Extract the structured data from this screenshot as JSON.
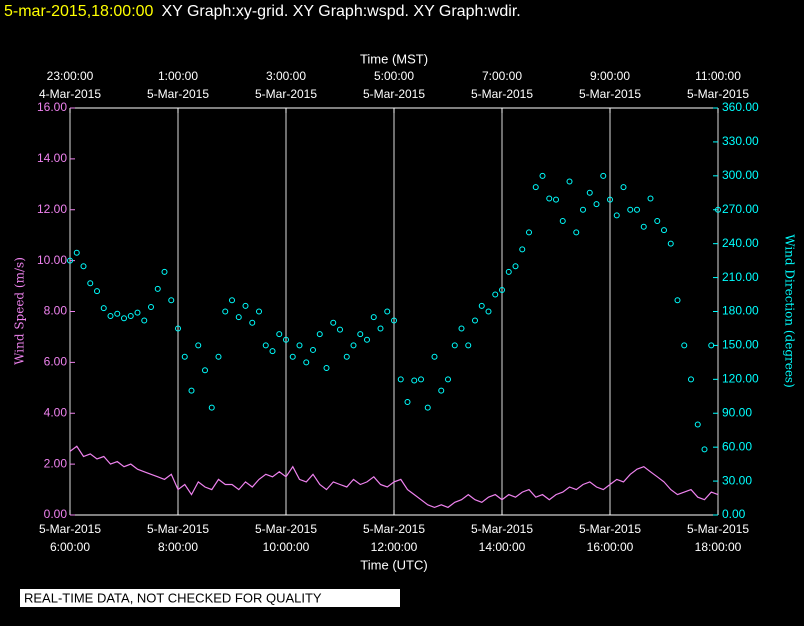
{
  "chart_data": {
    "type": "line",
    "title_time": "5-mar-2015,18:00:00",
    "title": "XY Graph:xy-grid.  XY Graph:wspd.  XY Graph:wdir.",
    "xlabel": "Time (UTC)",
    "x2label": "Time (MST)",
    "ylabel": "Wind Speed (m/s)",
    "y2label": "Wind Direction (degrees)",
    "note": "REAL-TIME DATA, NOT CHECKED FOR QUALITY",
    "grid": "x",
    "xlim": [
      6,
      18
    ],
    "xticks": [
      {
        "value": 6,
        "label": "6:00:00",
        "date": "5-Mar-2015"
      },
      {
        "value": 8,
        "label": "8:00:00",
        "date": "5-Mar-2015"
      },
      {
        "value": 10,
        "label": "10:00:00",
        "date": "5-Mar-2015"
      },
      {
        "value": 12,
        "label": "12:00:00",
        "date": "5-Mar-2015"
      },
      {
        "value": 14,
        "label": "14:00:00",
        "date": "5-Mar-2015"
      },
      {
        "value": 16,
        "label": "16:00:00",
        "date": "5-Mar-2015"
      },
      {
        "value": 18,
        "label": "18:00:00",
        "date": "5-Mar-2015"
      }
    ],
    "x2ticks": [
      {
        "value": 6,
        "label": "23:00:00",
        "date": "4-Mar-2015"
      },
      {
        "value": 8,
        "label": "1:00:00",
        "date": "5-Mar-2015"
      },
      {
        "value": 10,
        "label": "3:00:00",
        "date": "5-Mar-2015"
      },
      {
        "value": 12,
        "label": "5:00:00",
        "date": "5-Mar-2015"
      },
      {
        "value": 14,
        "label": "7:00:00",
        "date": "5-Mar-2015"
      },
      {
        "value": 16,
        "label": "9:00:00",
        "date": "5-Mar-2015"
      },
      {
        "value": 18,
        "label": "11:00:00",
        "date": "5-Mar-2015"
      }
    ],
    "ylim": [
      0,
      16
    ],
    "yticks": [
      {
        "value": 0,
        "label": "0.00"
      },
      {
        "value": 2,
        "label": "2.00"
      },
      {
        "value": 4,
        "label": "4.00"
      },
      {
        "value": 6,
        "label": "6.00"
      },
      {
        "value": 8,
        "label": "8.00"
      },
      {
        "value": 10,
        "label": "10.00"
      },
      {
        "value": 12,
        "label": "12.00"
      },
      {
        "value": 14,
        "label": "14.00"
      },
      {
        "value": 16,
        "label": "16.00"
      }
    ],
    "y2lim": [
      0,
      360
    ],
    "y2ticks": [
      {
        "value": 0,
        "label": "0.00"
      },
      {
        "value": 30,
        "label": "30.00"
      },
      {
        "value": 60,
        "label": "60.00"
      },
      {
        "value": 90,
        "label": "90.00"
      },
      {
        "value": 120,
        "label": "120.00"
      },
      {
        "value": 150,
        "label": "150.00"
      },
      {
        "value": 180,
        "label": "180.00"
      },
      {
        "value": 210,
        "label": "210.00"
      },
      {
        "value": 240,
        "label": "240.00"
      },
      {
        "value": 270,
        "label": "270.00"
      },
      {
        "value": 300,
        "label": "300.00"
      },
      {
        "value": 330,
        "label": "330.00"
      },
      {
        "value": 360,
        "label": "360.00"
      }
    ],
    "x": [
      6,
      6.125,
      6.25,
      6.375,
      6.5,
      6.625,
      6.75,
      6.875,
      7,
      7.125,
      7.25,
      7.375,
      7.5,
      7.625,
      7.75,
      7.875,
      8,
      8.125,
      8.25,
      8.375,
      8.5,
      8.625,
      8.75,
      8.875,
      9,
      9.125,
      9.25,
      9.375,
      9.5,
      9.625,
      9.75,
      9.875,
      10,
      10.125,
      10.25,
      10.375,
      10.5,
      10.625,
      10.75,
      10.875,
      11,
      11.125,
      11.25,
      11.375,
      11.5,
      11.625,
      11.75,
      11.875,
      12,
      12.125,
      12.25,
      12.375,
      12.5,
      12.625,
      12.75,
      12.875,
      13,
      13.125,
      13.25,
      13.375,
      13.5,
      13.625,
      13.75,
      13.875,
      14,
      14.125,
      14.25,
      14.375,
      14.5,
      14.625,
      14.75,
      14.875,
      15,
      15.125,
      15.25,
      15.375,
      15.5,
      15.625,
      15.75,
      15.875,
      16,
      16.125,
      16.25,
      16.375,
      16.5,
      16.625,
      16.75,
      16.875,
      17,
      17.125,
      17.25,
      17.375,
      17.5,
      17.625,
      17.75,
      17.875,
      18
    ],
    "series": [
      {
        "color": "#ee82ee",
        "marker": "line",
        "values": [
          2.5,
          2.7,
          2.3,
          2.4,
          2.2,
          2.3,
          2.0,
          2.1,
          1.9,
          2.0,
          1.8,
          1.7,
          1.6,
          1.5,
          1.4,
          1.6,
          1.0,
          1.2,
          0.8,
          1.3,
          1.1,
          1.0,
          1.4,
          1.2,
          1.2,
          1.0,
          1.3,
          1.1,
          1.4,
          1.6,
          1.5,
          1.7,
          1.5,
          1.9,
          1.4,
          1.3,
          1.6,
          1.2,
          1.0,
          1.3,
          1.2,
          1.1,
          1.4,
          1.2,
          1.3,
          1.5,
          1.2,
          1.1,
          1.3,
          1.4,
          1.0,
          0.8,
          0.6,
          0.4,
          0.3,
          0.4,
          0.3,
          0.5,
          0.6,
          0.8,
          0.6,
          0.5,
          0.7,
          0.8,
          0.6,
          0.8,
          0.7,
          0.9,
          1.0,
          0.7,
          0.8,
          0.6,
          0.8,
          0.9,
          1.1,
          1.0,
          1.2,
          1.3,
          1.1,
          1.0,
          1.2,
          1.4,
          1.3,
          1.6,
          1.8,
          1.9,
          1.7,
          1.5,
          1.3,
          1.0,
          0.8,
          0.9,
          1.0,
          0.7,
          0.6,
          0.9,
          0.8
        ]
      },
      {
        "color": "#00ffff",
        "marker": "circle",
        "axis": "y2",
        "values": [
          225,
          232,
          220,
          205,
          198,
          183,
          176,
          178,
          174,
          176,
          179,
          172,
          184,
          200,
          215,
          190,
          165,
          140,
          110,
          150,
          128,
          95,
          140,
          180,
          190,
          175,
          185,
          170,
          180,
          150,
          145,
          160,
          155,
          140,
          150,
          135,
          146,
          160,
          130,
          170,
          164,
          140,
          150,
          160,
          155,
          175,
          165,
          180,
          172,
          120,
          100,
          119,
          120,
          95,
          140,
          110,
          120,
          150,
          165,
          150,
          172,
          185,
          180,
          195,
          199,
          215,
          220,
          235,
          250,
          290,
          300,
          280,
          279,
          260,
          295,
          250,
          270,
          285,
          275,
          300,
          279,
          265,
          290,
          270,
          270,
          255,
          280,
          260,
          252,
          240,
          190,
          150,
          120,
          80,
          58,
          150,
          270
        ]
      }
    ]
  }
}
